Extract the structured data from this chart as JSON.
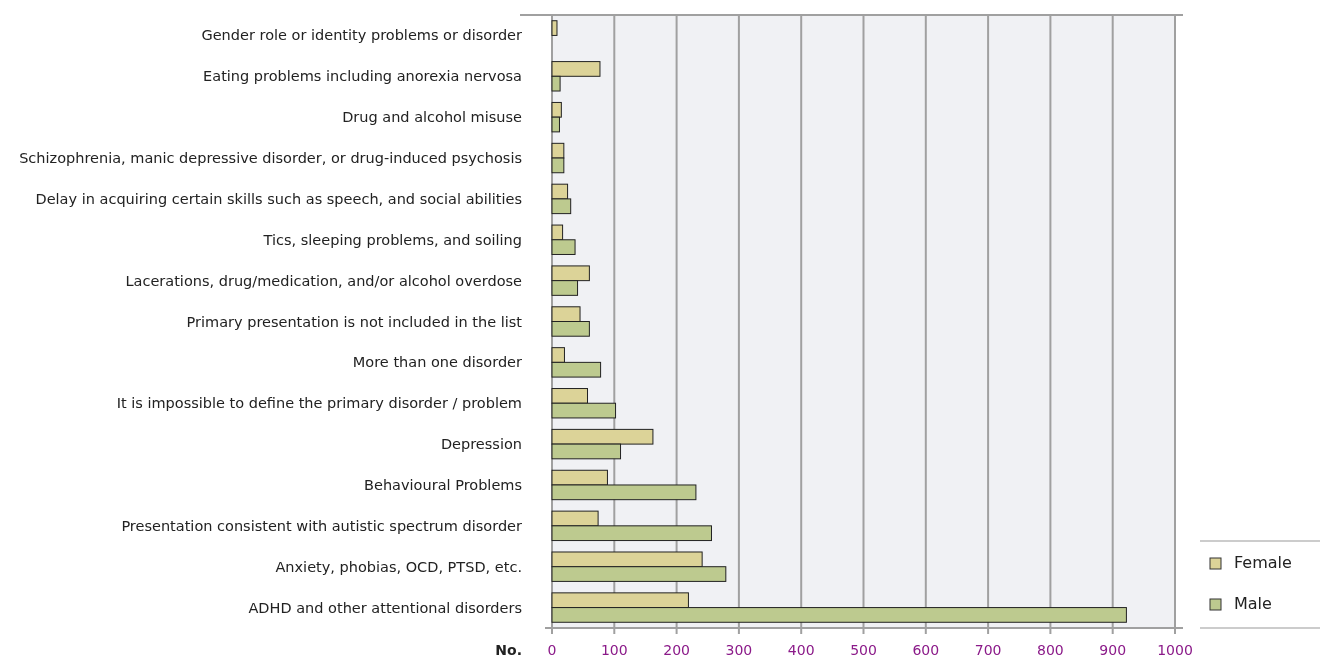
{
  "chart_data": {
    "type": "bar",
    "orientation": "horizontal",
    "xlabel": "No.",
    "categories": [
      "Gender role or identity problems or disorder",
      "Eating problems including anorexia nervosa",
      "Drug and alcohol misuse",
      "Schizophrenia, manic depressive disorder, or drug-induced psychosis",
      "Delay in acquiring certain skills such as  speech, and social abilities",
      "Tics, sleeping problems, and soiling",
      "Lacerations, drug/medication, and/or alcohol overdose",
      "Primary presentation is not included in the list",
      "More than one disorder",
      "It is impossible to define the primary disorder / problem",
      "Depression",
      "Behavioural Problems",
      "Presentation consistent with autistic spectrum disorder",
      "Anxiety, phobias, OCD, PTSD, etc.",
      "ADHD and other attentional disorders"
    ],
    "series": [
      {
        "name": "Female",
        "color": "#dcd398",
        "values": [
          8,
          77,
          15,
          19,
          25,
          17,
          60,
          45,
          20,
          57,
          162,
          89,
          74,
          241,
          219
        ]
      },
      {
        "name": "Male",
        "color": "#bdca8f",
        "values": [
          null,
          13,
          12,
          19,
          30,
          37,
          41,
          60,
          78,
          102,
          110,
          231,
          256,
          279,
          922
        ]
      }
    ],
    "xlim": [
      0,
      1000
    ],
    "xticks": [
      0,
      100,
      200,
      300,
      400,
      500,
      600,
      700,
      800,
      900,
      1000
    ],
    "grid": "x",
    "legend": "bottom right"
  }
}
